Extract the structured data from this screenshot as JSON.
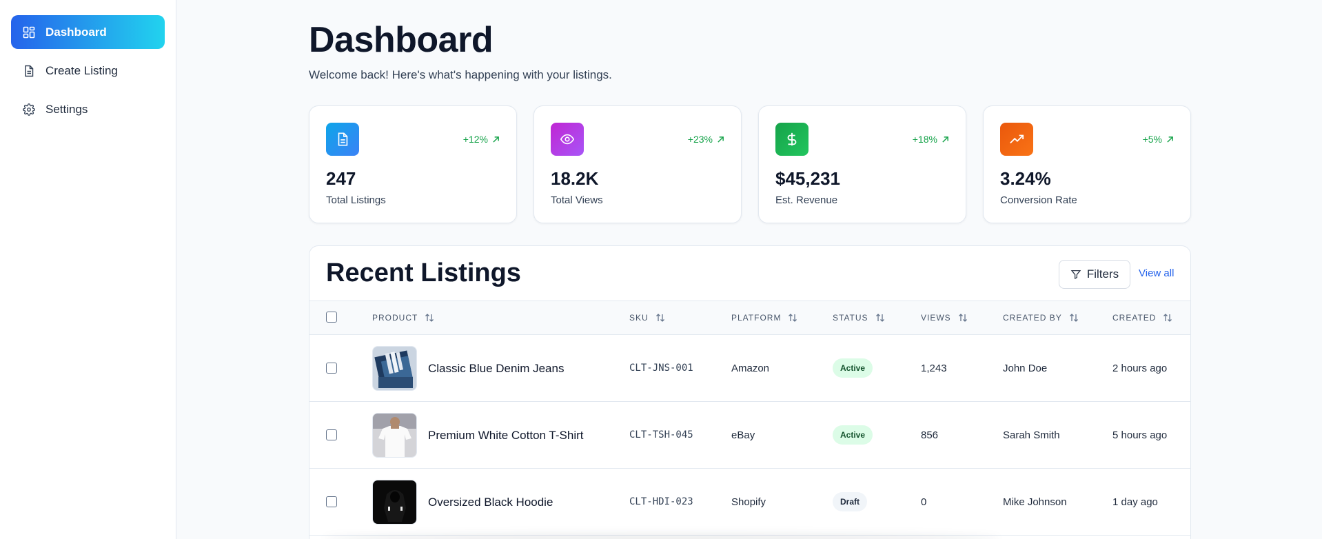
{
  "sidebar": {
    "items": [
      {
        "label": "Dashboard",
        "icon": "dashboard-icon",
        "active": true
      },
      {
        "label": "Create Listing",
        "icon": "file-icon",
        "active": false
      },
      {
        "label": "Settings",
        "icon": "gear-icon",
        "active": false
      }
    ]
  },
  "header": {
    "title": "Dashboard",
    "subtitle": "Welcome back! Here's what's happening with your listings."
  },
  "stats": [
    {
      "icon": "document-icon",
      "color": "#0ea5e9",
      "change": "+12%",
      "value": "247",
      "label": "Total Listings"
    },
    {
      "icon": "eye-icon",
      "color": "#c026d3",
      "change": "+23%",
      "value": "18.2K",
      "label": "Total Views"
    },
    {
      "icon": "dollar-icon",
      "color": "#16a34a",
      "change": "+18%",
      "value": "$45,231",
      "label": "Est. Revenue"
    },
    {
      "icon": "trending-up-icon",
      "color": "#ea580c",
      "change": "+5%",
      "value": "3.24%",
      "label": "Conversion Rate"
    }
  ],
  "listings": {
    "title": "Recent Listings",
    "filters_label": "Filters",
    "view_all_label": "View all",
    "columns": [
      "PRODUCT",
      "SKU",
      "PLATFORM",
      "STATUS",
      "VIEWS",
      "CREATED BY",
      "CREATED"
    ],
    "rows": [
      {
        "product": "Classic Blue Denim Jeans",
        "sku": "CLT-JNS-001",
        "platform": "Amazon",
        "status": "Active",
        "views": "1,243",
        "created_by": "John Doe",
        "created": "2 hours ago",
        "thumb": "jeans"
      },
      {
        "product": "Premium White Cotton T-Shirt",
        "sku": "CLT-TSH-045",
        "platform": "eBay",
        "status": "Active",
        "views": "856",
        "created_by": "Sarah Smith",
        "created": "5 hours ago",
        "thumb": "tshirt"
      },
      {
        "product": "Oversized Black Hoodie",
        "sku": "CLT-HDI-023",
        "platform": "Shopify",
        "status": "Draft",
        "views": "0",
        "created_by": "Mike Johnson",
        "created": "1 day ago",
        "thumb": "hoodie"
      }
    ]
  },
  "colors": {
    "accent_start": "#2563eb",
    "accent_end": "#22d3ee",
    "positive": "#16a34a",
    "link": "#2563eb"
  }
}
